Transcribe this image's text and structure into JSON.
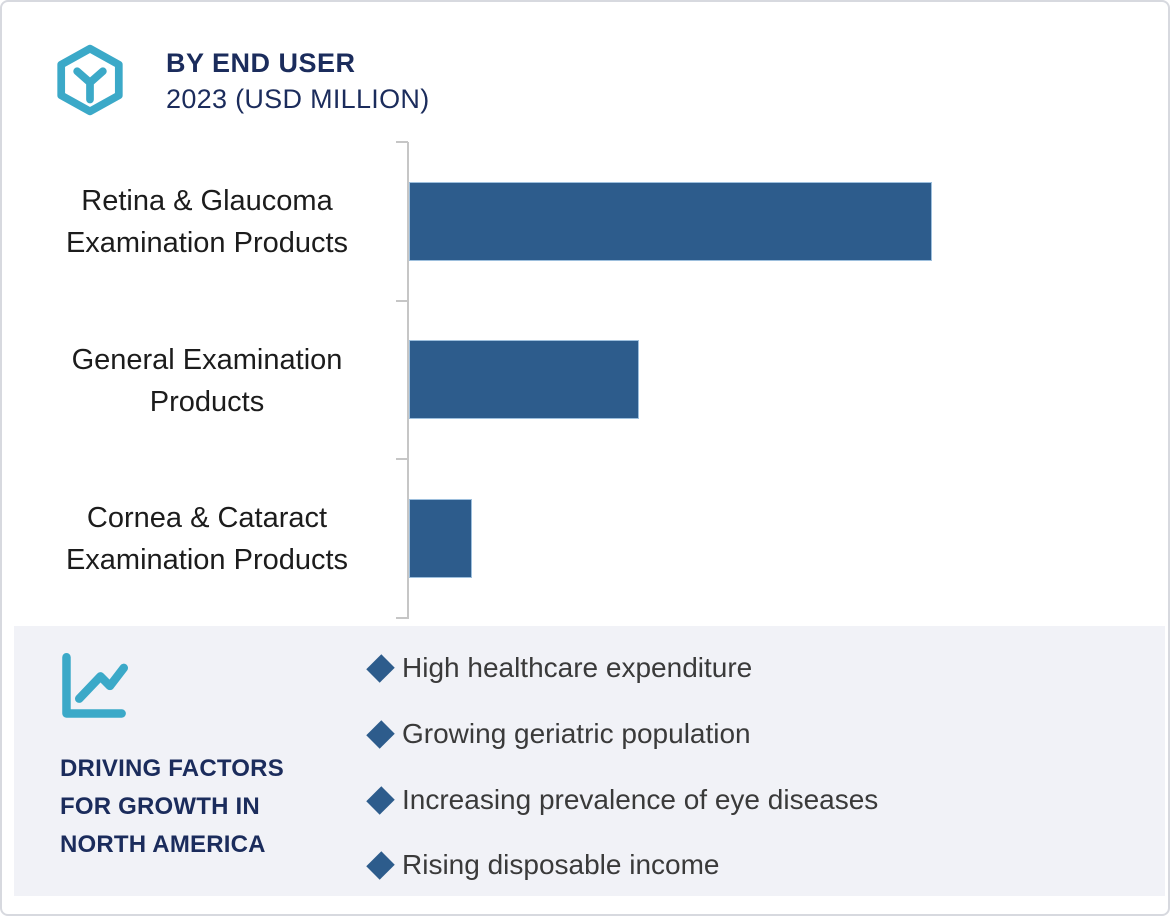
{
  "header": {
    "title": "BY END USER",
    "subtitle": "2023 (USD MILLION)",
    "icon": "hexagon-cube-icon"
  },
  "chart_data": {
    "type": "bar",
    "orientation": "horizontal",
    "title": "BY END USER",
    "subtitle": "2023 (USD MILLION)",
    "unit": "USD Million",
    "categories": [
      "Retina & Glaucoma Examination Products",
      "General Examination Products",
      "Cornea & Cataract Examination Products"
    ],
    "values_pct_of_longest": [
      100,
      44,
      12
    ],
    "value_labels_shown": false,
    "numeric_axis_labels_shown": false,
    "bar_color": "#2d5c8c",
    "axis_color": "#c6c6c6",
    "grid": false,
    "legend": false,
    "xlabel": "",
    "ylabel": ""
  },
  "driving_factors": {
    "icon": "line-chart-icon",
    "title_lines": [
      "DRIVING FACTORS",
      "FOR GROWTH IN",
      "NORTH AMERICA"
    ],
    "items": [
      "High healthcare expenditure",
      "Growing geriatric population",
      "Increasing prevalence of eye diseases",
      "Rising disposable income"
    ]
  },
  "colors": {
    "accent_teal": "#3ba9c8",
    "navy_text": "#1b2c5c",
    "bar_blue": "#2d5c8c",
    "bullet_diamond": "#2d5c8c",
    "panel_bg": "#f1f2f7",
    "body_text": "#3a3a3a",
    "category_text": "#1c1c1c"
  }
}
